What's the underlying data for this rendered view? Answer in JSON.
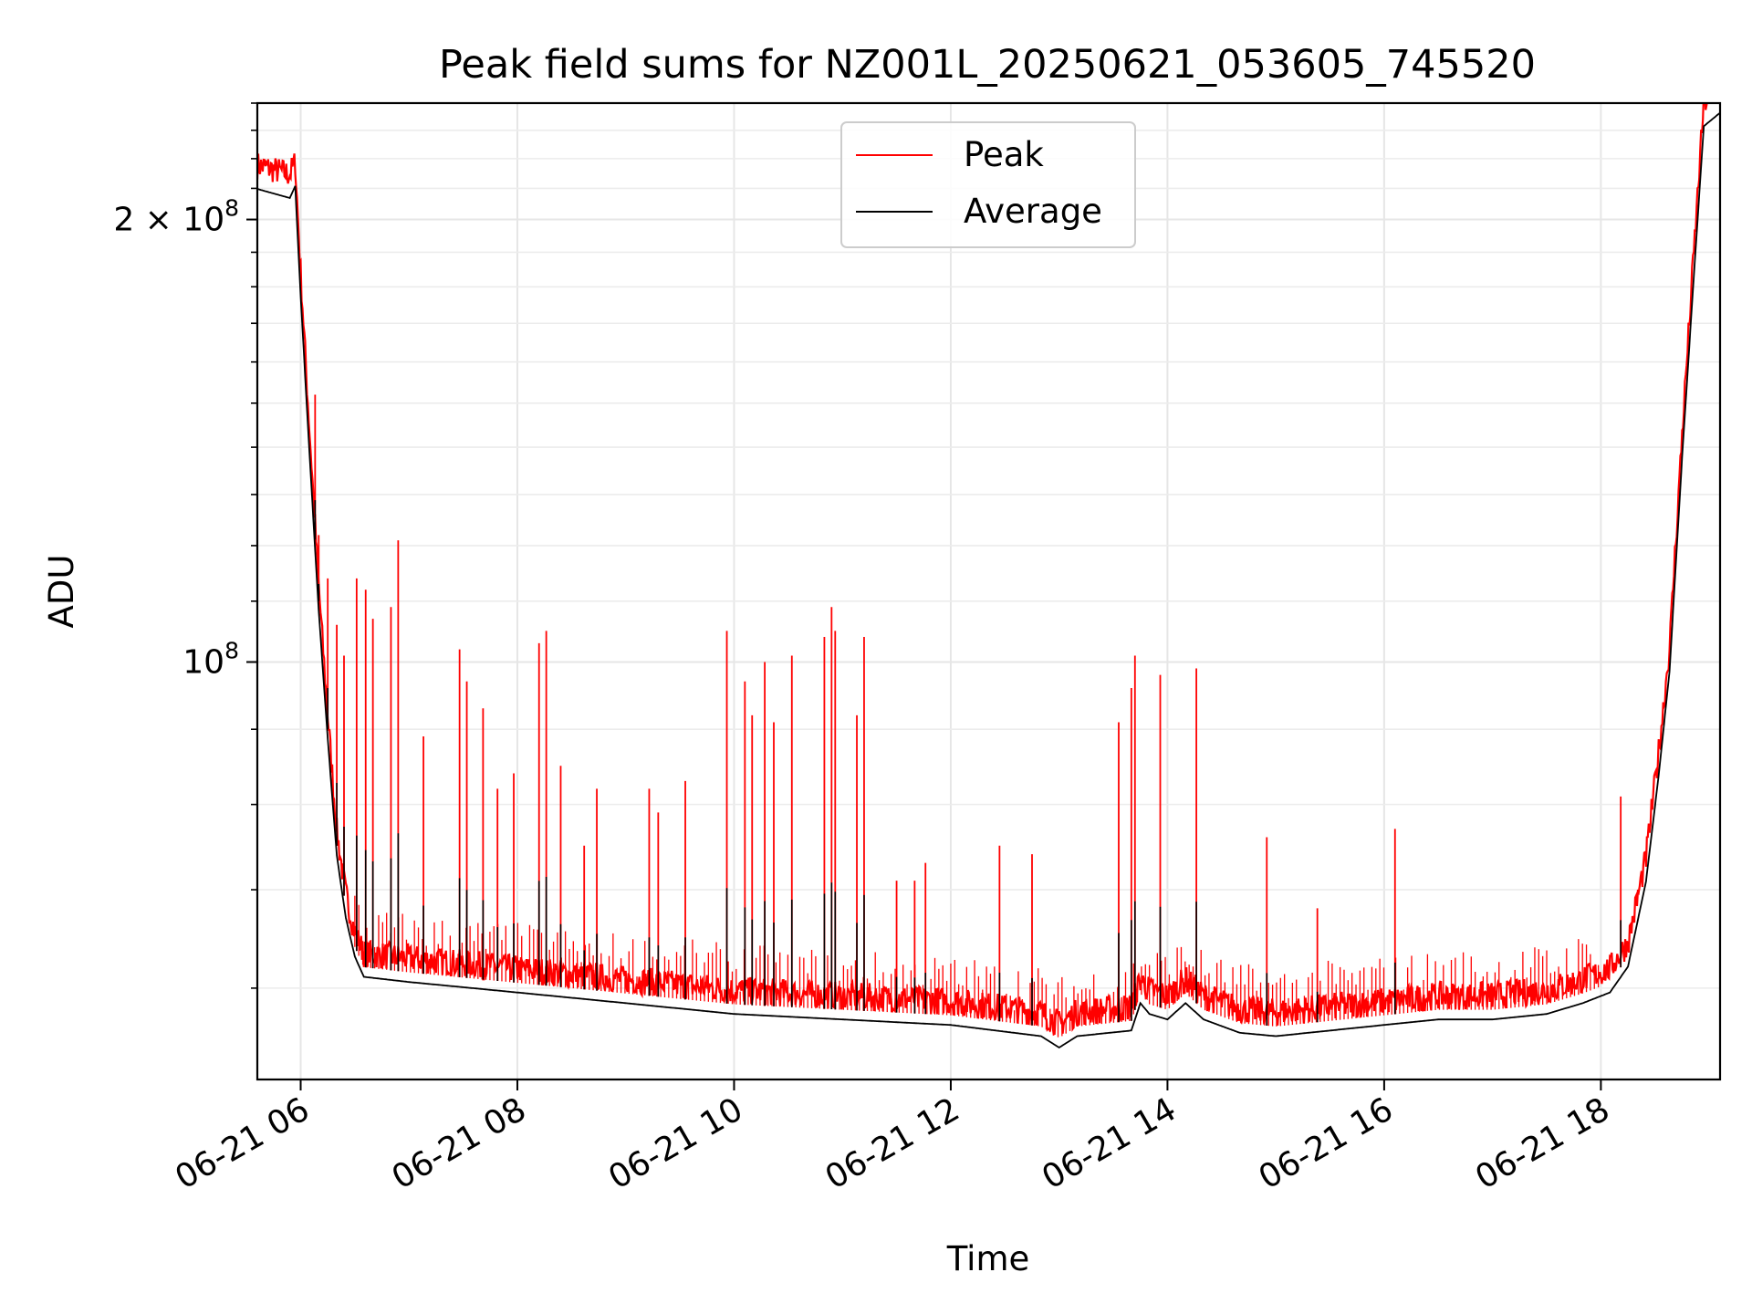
{
  "chart_data": {
    "type": "line",
    "title": "Peak field sums for NZ001L_20250621_053605_745520",
    "xlabel": "Time",
    "ylabel": "ADU",
    "yscale": "log",
    "ylim": [
      52000000,
      240000000
    ],
    "xlim": [
      "06-21 05:36",
      "06-21 19:06"
    ],
    "x_ticks": [
      "06-21 06",
      "06-21 08",
      "06-21 10",
      "06-21 12",
      "06-21 14",
      "06-21 16",
      "06-21 18"
    ],
    "y_ticks": [
      {
        "value": 100000000,
        "base": "10",
        "exp": "8",
        "mantissa": ""
      },
      {
        "value": 200000000,
        "base": "10",
        "exp": "8",
        "mantissa": "2 × "
      }
    ],
    "grid": true,
    "legend_position": "top-center",
    "series": [
      {
        "name": "Peak",
        "color": "#ff0000",
        "baseline": [
          [
            "06-21 05:36",
            213000000
          ],
          [
            "06-21 05:54",
            210000000
          ],
          [
            "06-21 05:57",
            214000000
          ],
          [
            "06-21 06:00",
            180000000
          ],
          [
            "06-21 06:05",
            140000000
          ],
          [
            "06-21 06:10",
            110000000
          ],
          [
            "06-21 06:15",
            90000000
          ],
          [
            "06-21 06:20",
            75000000
          ],
          [
            "06-21 06:25",
            68000000
          ],
          [
            "06-21 06:30",
            64000000
          ],
          [
            "06-21 06:35",
            62000000
          ],
          [
            "06-21 07:00",
            61500000
          ],
          [
            "06-21 07:30",
            61000000
          ],
          [
            "06-21 08:00",
            60500000
          ],
          [
            "06-21 08:30",
            60000000
          ],
          [
            "06-21 09:00",
            59500000
          ],
          [
            "06-21 10:00",
            58500000
          ],
          [
            "06-21 11:00",
            58000000
          ],
          [
            "06-21 12:00",
            57500000
          ],
          [
            "06-21 12:50",
            56500000
          ],
          [
            "06-21 13:00",
            55500000
          ],
          [
            "06-21 13:10",
            56500000
          ],
          [
            "06-21 13:40",
            57000000
          ],
          [
            "06-21 13:45",
            59500000
          ],
          [
            "06-21 13:50",
            58500000
          ],
          [
            "06-21 14:00",
            58000000
          ],
          [
            "06-21 14:10",
            59500000
          ],
          [
            "06-21 14:20",
            58000000
          ],
          [
            "06-21 14:40",
            56800000
          ],
          [
            "06-21 15:00",
            56500000
          ],
          [
            "06-21 16:00",
            57500000
          ],
          [
            "06-21 16:30",
            58000000
          ],
          [
            "06-21 17:00",
            58000000
          ],
          [
            "06-21 17:30",
            58500000
          ],
          [
            "06-21 17:50",
            59500000
          ],
          [
            "06-21 18:05",
            60500000
          ],
          [
            "06-21 18:15",
            63000000
          ],
          [
            "06-21 18:25",
            72000000
          ],
          [
            "06-21 18:32",
            85000000
          ],
          [
            "06-21 18:38",
            100000000
          ],
          [
            "06-21 18:45",
            140000000
          ],
          [
            "06-21 18:52",
            190000000
          ],
          [
            "06-21 18:57",
            235000000
          ],
          [
            "06-21 19:06",
            240000000
          ]
        ],
        "spikes": [
          [
            "06-21 06:08",
            152000000
          ],
          [
            "06-21 06:10",
            122000000
          ],
          [
            "06-21 06:15",
            114000000
          ],
          [
            "06-21 06:20",
            106000000
          ],
          [
            "06-21 06:24",
            101000000
          ],
          [
            "06-21 06:31",
            114000000
          ],
          [
            "06-21 06:36",
            112000000
          ],
          [
            "06-21 06:40",
            107000000
          ],
          [
            "06-21 06:50",
            109000000
          ],
          [
            "06-21 06:54",
            121000000
          ],
          [
            "06-21 07:08",
            89000000
          ],
          [
            "06-21 07:28",
            102000000
          ],
          [
            "06-21 07:32",
            97000000
          ],
          [
            "06-21 07:41",
            93000000
          ],
          [
            "06-21 07:49",
            82000000
          ],
          [
            "06-21 07:58",
            84000000
          ],
          [
            "06-21 08:12",
            103000000
          ],
          [
            "06-21 08:16",
            105000000
          ],
          [
            "06-21 08:24",
            85000000
          ],
          [
            "06-21 08:37",
            75000000
          ],
          [
            "06-21 08:44",
            82000000
          ],
          [
            "06-21 09:13",
            82000000
          ],
          [
            "06-21 09:18",
            79000000
          ],
          [
            "06-21 09:33",
            83000000
          ],
          [
            "06-21 09:56",
            105000000
          ],
          [
            "06-21 10:06",
            97000000
          ],
          [
            "06-21 10:10",
            92000000
          ],
          [
            "06-21 10:17",
            100000000
          ],
          [
            "06-21 10:22",
            91000000
          ],
          [
            "06-21 10:32",
            101000000
          ],
          [
            "06-21 10:50",
            104000000
          ],
          [
            "06-21 10:54",
            109000000
          ],
          [
            "06-21 10:56",
            105000000
          ],
          [
            "06-21 11:08",
            92000000
          ],
          [
            "06-21 11:12",
            104000000
          ],
          [
            "06-21 11:30",
            71000000
          ],
          [
            "06-21 11:40",
            71000000
          ],
          [
            "06-21 11:46",
            73000000
          ],
          [
            "06-21 12:27",
            75000000
          ],
          [
            "06-21 12:45",
            74000000
          ],
          [
            "06-21 13:33",
            91000000
          ],
          [
            "06-21 13:40",
            96000000
          ],
          [
            "06-21 13:42",
            101000000
          ],
          [
            "06-21 13:56",
            98000000
          ],
          [
            "06-21 14:16",
            99000000
          ],
          [
            "06-21 14:55",
            76000000
          ],
          [
            "06-21 15:23",
            68000000
          ],
          [
            "06-21 16:06",
            77000000
          ],
          [
            "06-21 18:11",
            81000000
          ]
        ]
      },
      {
        "name": "Average",
        "color": "#000000"
      }
    ]
  }
}
